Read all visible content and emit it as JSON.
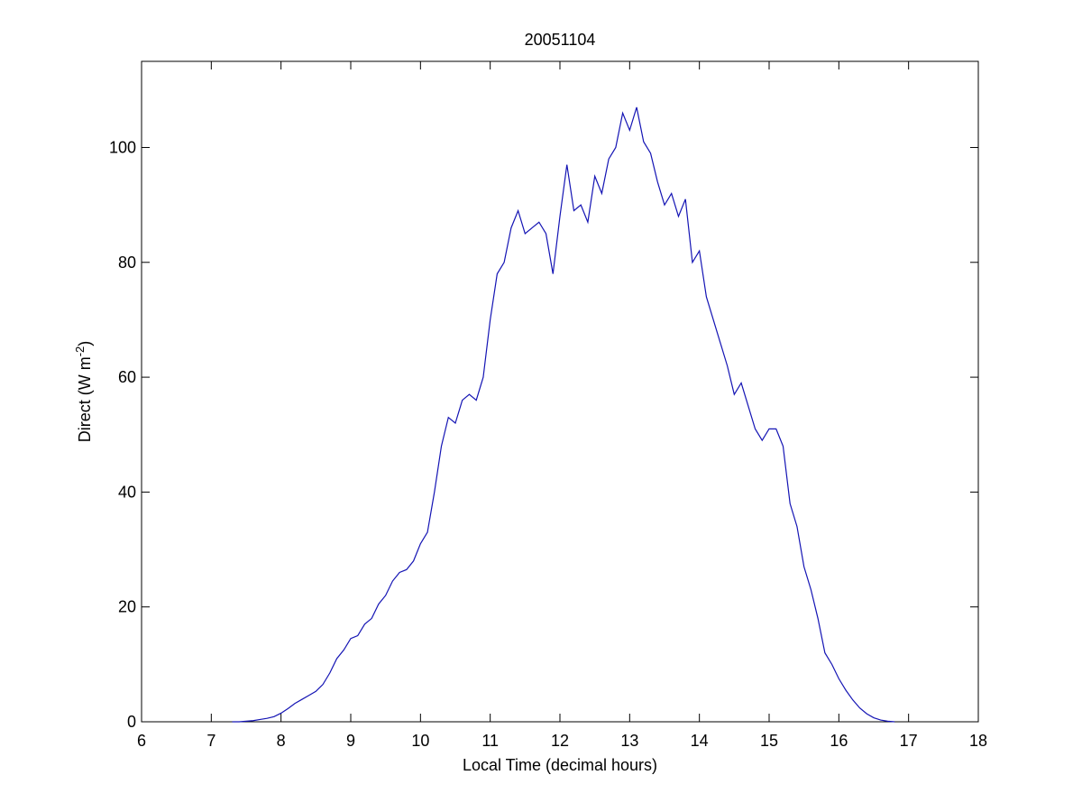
{
  "chart_data": {
    "type": "line",
    "title": "20051104",
    "x_label": "Local Time (decimal hours)",
    "y_label": [
      "Direct (W m",
      "-2",
      ")"
    ],
    "xlim": [
      6,
      18
    ],
    "xticks": [
      6,
      7,
      8,
      9,
      10,
      11,
      12,
      13,
      14,
      15,
      16,
      17,
      18
    ],
    "ylim": [
      0,
      115
    ],
    "yticks": [
      0,
      20,
      40,
      60,
      80,
      100
    ],
    "grid": false,
    "series": [
      {
        "color": "#1414b4",
        "x": [
          7.3,
          7.4,
          7.5,
          7.6,
          7.7,
          7.8,
          7.9,
          8.0,
          8.1,
          8.2,
          8.3,
          8.4,
          8.5,
          8.6,
          8.7,
          8.8,
          8.9,
          9.0,
          9.1,
          9.2,
          9.3,
          9.4,
          9.5,
          9.6,
          9.7,
          9.8,
          9.9,
          10.0,
          10.1,
          10.2,
          10.3,
          10.4,
          10.5,
          10.6,
          10.7,
          10.8,
          10.9,
          11.0,
          11.1,
          11.2,
          11.3,
          11.4,
          11.5,
          11.6,
          11.7,
          11.8,
          11.9,
          12.0,
          12.1,
          12.2,
          12.3,
          12.4,
          12.5,
          12.6,
          12.7,
          12.8,
          12.9,
          13.0,
          13.1,
          13.2,
          13.3,
          13.4,
          13.5,
          13.6,
          13.7,
          13.8,
          13.9,
          14.0,
          14.1,
          14.2,
          14.3,
          14.4,
          14.5,
          14.6,
          14.7,
          14.8,
          14.9,
          15.0,
          15.1,
          15.2,
          15.3,
          15.4,
          15.5,
          15.6,
          15.7,
          15.8,
          15.9,
          16.0,
          16.1,
          16.2,
          16.3,
          16.4,
          16.5,
          16.6,
          16.7,
          16.8
        ],
        "values": [
          0,
          0,
          0.1,
          0.2,
          0.4,
          0.6,
          0.9,
          1.5,
          2.3,
          3.2,
          3.9,
          4.6,
          5.3,
          6.5,
          8.5,
          11,
          12.5,
          14.5,
          15,
          17,
          18,
          20.5,
          22,
          24.5,
          26,
          26.5,
          28,
          31,
          33,
          40,
          48,
          53,
          52,
          56,
          57,
          56,
          60,
          70,
          78,
          80,
          86,
          89,
          85,
          86,
          87,
          85,
          78,
          88,
          97,
          89,
          90,
          87,
          95,
          92,
          98,
          100,
          106,
          103,
          107,
          101,
          99,
          94,
          90,
          92,
          88,
          91,
          80,
          82,
          74,
          70,
          66,
          62,
          57,
          59,
          55,
          51,
          49,
          51,
          51,
          48,
          38,
          34,
          27,
          23,
          18,
          12,
          10,
          7.5,
          5.5,
          3.8,
          2.4,
          1.4,
          0.7,
          0.3,
          0.1,
          0
        ]
      }
    ]
  }
}
